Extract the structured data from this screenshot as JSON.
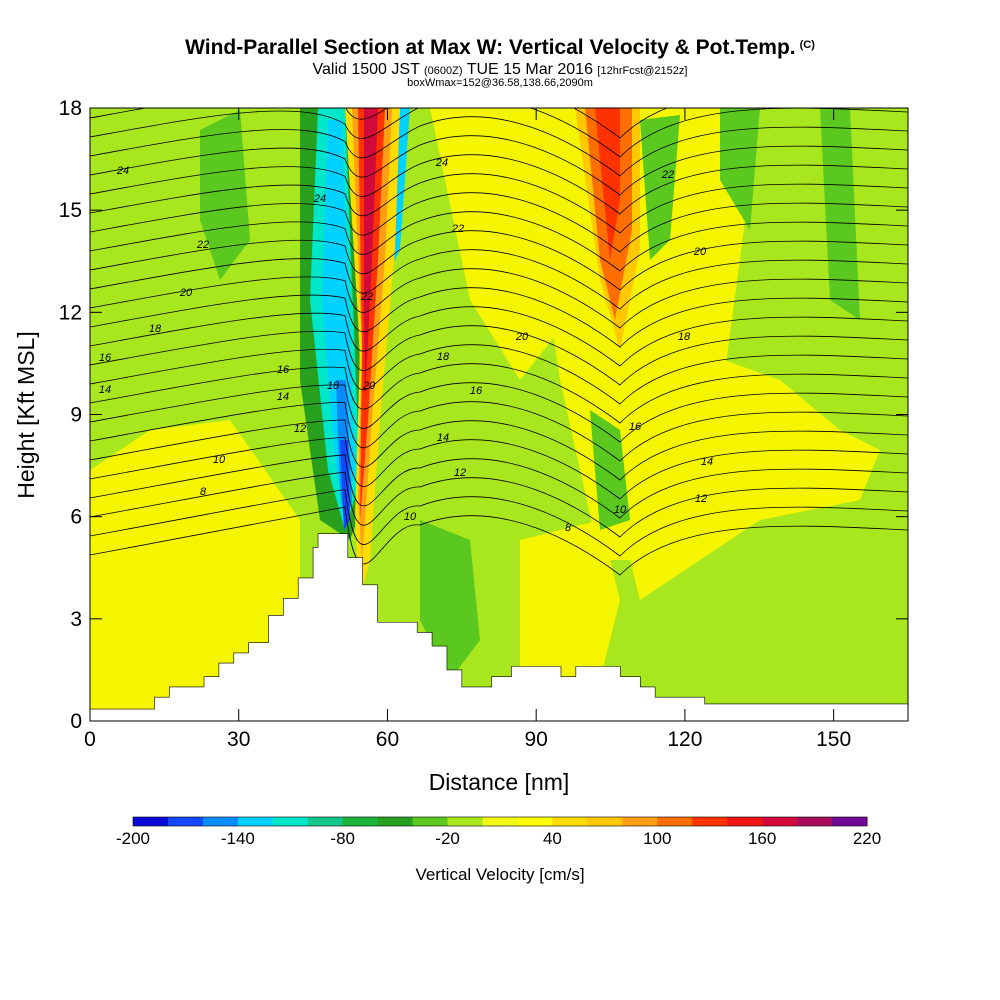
{
  "title": {
    "main": "Wind-Parallel Section at Max W: Vertical Velocity & Pot.Temp.",
    "copyright": "(C)",
    "valid_prefix": "Valid 1500 JST",
    "valid_zulu": "(0600Z)",
    "valid_date": "TUE 15 Mar 2016",
    "forecast": "[12hrFcst@2152z]",
    "box": "boxWmax=152@36.58,138.66,2090m"
  },
  "chart_data": {
    "type": "heatmap",
    "xlabel": "Distance [nm]",
    "ylabel": "Height [Kft MSL]",
    "xlim": [
      0,
      165
    ],
    "ylim": [
      0,
      18
    ],
    "x_ticks": [
      0,
      30,
      60,
      90,
      120,
      150
    ],
    "y_ticks": [
      0,
      3,
      6,
      9,
      12,
      15,
      18
    ],
    "colorbar": {
      "label": "Vertical Velocity [cm/s]",
      "levels": [
        -200,
        -180,
        -160,
        -140,
        -120,
        -100,
        -80,
        -60,
        -40,
        -20,
        0,
        20,
        40,
        60,
        80,
        100,
        120,
        140,
        160,
        180,
        200,
        220
      ],
      "tick_labels": [
        "-200",
        "-140",
        "-80",
        "-20",
        "40",
        "100",
        "160",
        "220"
      ],
      "colors": [
        "#0a0ad8",
        "#1448ff",
        "#0a8cff",
        "#00d2ff",
        "#00e6c8",
        "#14c88c",
        "#1eb43c",
        "#28a01e",
        "#5ac81e",
        "#a8e61e",
        "#f0fa14",
        "#ffff00",
        "#ffdc00",
        "#ffc800",
        "#ffa014",
        "#ff6e00",
        "#ff3200",
        "#f01414",
        "#d20a3c",
        "#aa0a5a",
        "#6e0a96"
      ]
    },
    "theta_contour_labels": [
      "8",
      "10",
      "12",
      "14",
      "16",
      "18",
      "20",
      "22",
      "24"
    ],
    "terrain_max_kft": 5.5,
    "terrain_peak_nm": 50,
    "max_updraft_cm_s": 152
  }
}
